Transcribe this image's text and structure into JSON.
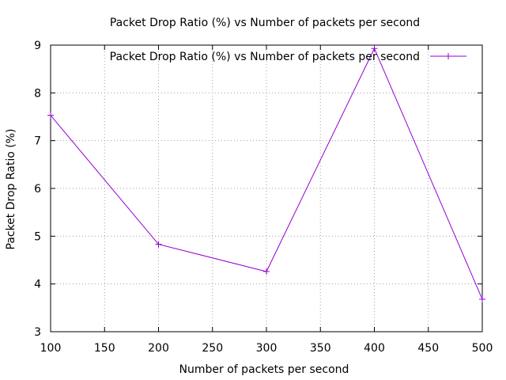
{
  "chart_data": {
    "type": "line",
    "title": "Packet Drop Ratio (%) vs Number of packets per second",
    "xlabel": "Number of packets per second",
    "ylabel": "Packet Drop Ratio (%)",
    "xlim": [
      100,
      500
    ],
    "ylim": [
      3,
      9
    ],
    "x_ticks": [
      100,
      150,
      200,
      250,
      300,
      350,
      400,
      450,
      500
    ],
    "y_ticks": [
      3,
      4,
      5,
      6,
      7,
      8,
      9
    ],
    "grid": true,
    "legend_position": "top-right",
    "series": [
      {
        "name": "Packet Drop Ratio (%) vs Number of packets per second",
        "color": "#9400d3",
        "marker": "plus",
        "x": [
          100,
          200,
          300,
          400,
          500
        ],
        "y": [
          7.53,
          4.83,
          4.26,
          8.93,
          3.68
        ]
      }
    ]
  }
}
